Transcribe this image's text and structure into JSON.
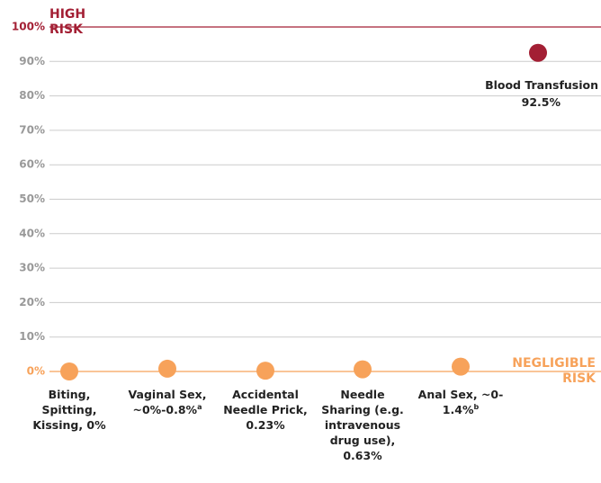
{
  "chart_data": {
    "type": "dot",
    "categories": [
      "Biting, Spitting, Kissing, 0%",
      "Vaginal Sex, ~0%-0.8%",
      "Accidental Needle Prick, 0.23%",
      "Needle Sharing (e.g. intravenous drug use), 0.63%",
      "Anal Sex, ~0-1.4%",
      "Blood Transfusion"
    ],
    "superscripts": [
      null,
      "a",
      null,
      null,
      "b",
      null
    ],
    "values": [
      0,
      0.8,
      0.23,
      0.63,
      1.4,
      92.5
    ],
    "value_labels": [
      null,
      null,
      null,
      null,
      null,
      "92.5%"
    ],
    "colors": [
      "#f7a25a",
      "#f7a25a",
      "#f7a25a",
      "#f7a25a",
      "#f7a25a",
      "#a31f34"
    ],
    "ylim": [
      0,
      100
    ],
    "yticks": [
      {
        "value": 0,
        "label": "0%"
      },
      {
        "value": 10,
        "label": "10%"
      },
      {
        "value": 20,
        "label": "20%"
      },
      {
        "value": 30,
        "label": "30%"
      },
      {
        "value": 40,
        "label": "40%"
      },
      {
        "value": 50,
        "label": "50%"
      },
      {
        "value": 60,
        "label": "60%"
      },
      {
        "value": 70,
        "label": "70%"
      },
      {
        "value": 80,
        "label": "80%"
      },
      {
        "value": 90,
        "label": "90%"
      },
      {
        "value": 100,
        "label": "100%"
      }
    ],
    "grid": true,
    "high_color": "#a31f34",
    "low_color": "#f7a25a",
    "annotations": [
      "HIGH RISK",
      "NEGLIGIBLE RISK"
    ]
  }
}
